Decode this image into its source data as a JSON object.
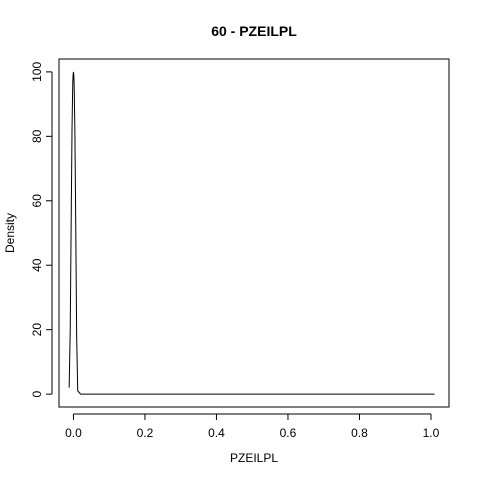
{
  "chart_data": {
    "type": "line",
    "title": "60 - PZEILPL",
    "xlabel": "PZEILPL",
    "ylabel": "Density",
    "xlim": [
      -0.0404,
      1.0504
    ],
    "ylim": [
      -4,
      104
    ],
    "xticks": [
      0.0,
      0.2,
      0.4,
      0.6,
      0.8,
      1.0
    ],
    "xtick_labels": [
      "0.0",
      "0.2",
      "0.4",
      "0.6",
      "0.8",
      "1.0"
    ],
    "yticks": [
      0,
      20,
      40,
      60,
      80,
      100
    ],
    "ytick_labels": [
      "0",
      "20",
      "40",
      "60",
      "80",
      "100"
    ],
    "grid": false,
    "series": [
      {
        "x": [
          -0.012,
          -0.009,
          -0.006,
          -0.004,
          -0.002,
          -0.001,
          0.0,
          0.001,
          0.002,
          0.004,
          0.006,
          0.009,
          0.012,
          0.02,
          0.1,
          0.3,
          0.5,
          0.7,
          0.9,
          1.01
        ],
        "y": [
          2,
          20,
          58,
          82,
          96,
          99,
          100,
          99,
          96,
          82,
          58,
          18,
          1,
          0,
          0,
          0,
          0,
          0,
          0,
          0
        ]
      }
    ]
  }
}
